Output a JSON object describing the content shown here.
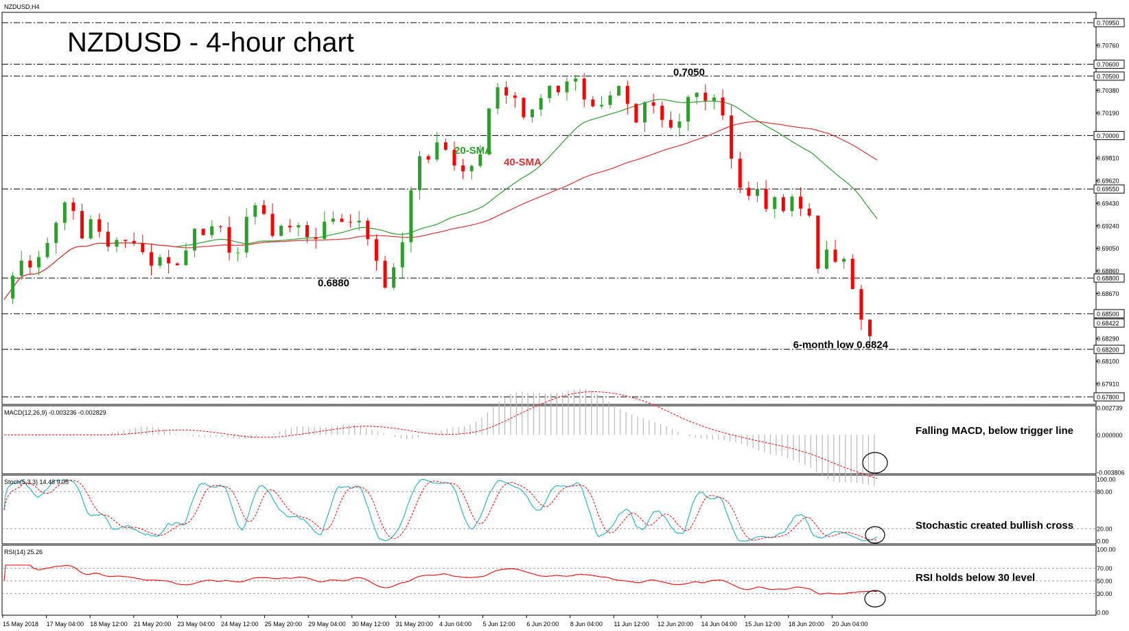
{
  "symbol_label": "NZDUSD,H4",
  "title": "NZDUSD - 4-hour chart",
  "colors": {
    "bull": "#2aa02a",
    "bear": "#ff0000",
    "sma20": "#2aa02a",
    "sma40": "#e03030",
    "stoch_main": "#2bb5c8",
    "stoch_signal": "#ff0000",
    "rsi": "#ff0000",
    "macd_hist": "#b8b8b8",
    "macd_signal": "#ff0000"
  },
  "chart_data": {
    "type": "candlestick",
    "timeframe": "4-hour",
    "ylim": [
      0.678,
      0.7095
    ],
    "price_ticks": [
      "0.70950",
      "0.70760",
      "0.70600",
      "0.70500",
      "0.70380",
      "0.70190",
      "0.70000",
      "0.69810",
      "0.69620",
      "0.69550",
      "0.69430",
      "0.69240",
      "0.69050",
      "0.68860",
      "0.68800",
      "0.68670",
      "0.68500",
      "0.68422",
      "0.68290",
      "0.68200",
      "0.68100",
      "0.67910",
      "0.67800"
    ],
    "highlighted_ticks": [
      "0.70950",
      "0.70600",
      "0.70500",
      "0.70000",
      "0.69550",
      "0.68800",
      "0.68500",
      "0.68422",
      "0.68200",
      "0.67800"
    ],
    "horizontal_levels": [
      0.7095,
      0.706,
      0.705,
      0.7,
      0.6955,
      0.688,
      0.685,
      0.682,
      0.678
    ],
    "x_labels": [
      "15 May 2018",
      "17 May 04:00",
      "18 May 12:00",
      "21 May 20:00",
      "23 May 04:00",
      "24 May 12:00",
      "25 May 20:00",
      "29 May 04:00",
      "30 May 12:00",
      "31 May 20:00",
      "4 Jun 04:00",
      "5 Jun 12:00",
      "6 Jun 20:00",
      "8 Jun 04:00",
      "11 Jun 12:00",
      "12 Jun 20:00",
      "14 Jun 04:00",
      "15 Jun 12:00",
      "18 Jun 20:00",
      "20 Jun 04:00"
    ],
    "price_path": [
      [
        0,
        0.6862
      ],
      [
        10,
        0.6895
      ],
      [
        20,
        0.6883
      ],
      [
        25,
        0.6898
      ],
      [
        35,
        0.693
      ],
      [
        45,
        0.6945
      ],
      [
        55,
        0.6905
      ],
      [
        62,
        0.6935
      ],
      [
        68,
        0.6905
      ],
      [
        75,
        0.6915
      ],
      [
        85,
        0.6908
      ],
      [
        95,
        0.6905
      ],
      [
        105,
        0.689
      ],
      [
        112,
        0.69
      ],
      [
        117,
        0.6885
      ],
      [
        125,
        0.6895
      ],
      [
        133,
        0.6925
      ],
      [
        140,
        0.6915
      ],
      [
        148,
        0.6928
      ],
      [
        155,
        0.6905
      ],
      [
        160,
        0.69
      ],
      [
        165,
        0.6915
      ],
      [
        172,
        0.6945
      ],
      [
        180,
        0.6935
      ],
      [
        188,
        0.6915
      ],
      [
        197,
        0.6928
      ],
      [
        208,
        0.692
      ],
      [
        217,
        0.691
      ],
      [
        222,
        0.6925
      ],
      [
        232,
        0.6928
      ],
      [
        243,
        0.6932
      ],
      [
        248,
        0.692
      ],
      [
        258,
        0.689
      ],
      [
        264,
        0.6875
      ],
      [
        268,
        0.6885
      ],
      [
        271,
        0.6895
      ],
      [
        276,
        0.6907
      ],
      [
        279,
        0.6925
      ],
      [
        282,
        0.6955
      ],
      [
        285,
        0.6975
      ],
      [
        290,
        0.6985
      ],
      [
        296,
        0.6975
      ],
      [
        300,
        0.699
      ],
      [
        305,
        0.6995
      ],
      [
        310,
        0.6975
      ],
      [
        318,
        0.6965
      ],
      [
        323,
        0.6975
      ],
      [
        330,
        0.6985
      ],
      [
        335,
        0.7015
      ],
      [
        340,
        0.704
      ],
      [
        347,
        0.703
      ],
      [
        355,
        0.703
      ],
      [
        362,
        0.7015
      ],
      [
        370,
        0.7032
      ],
      [
        378,
        0.7045
      ],
      [
        384,
        0.7035
      ],
      [
        390,
        0.705
      ],
      [
        397,
        0.7048
      ],
      [
        402,
        0.7032
      ],
      [
        408,
        0.7025
      ],
      [
        412,
        0.7022
      ],
      [
        420,
        0.703
      ],
      [
        426,
        0.704
      ],
      [
        432,
        0.7022
      ],
      [
        438,
        0.701
      ],
      [
        443,
        0.7025
      ],
      [
        450,
        0.7025
      ],
      [
        458,
        0.7012
      ],
      [
        463,
        0.7005
      ],
      [
        470,
        0.7015
      ],
      [
        476,
        0.7045
      ],
      [
        482,
        0.7025
      ],
      [
        488,
        0.7035
      ],
      [
        494,
        0.703
      ],
      [
        498,
        0.702
      ],
      [
        503,
        0.6985
      ],
      [
        509,
        0.6955
      ],
      [
        515,
        0.6945
      ],
      [
        521,
        0.6955
      ],
      [
        526,
        0.6935
      ],
      [
        533,
        0.6945
      ],
      [
        540,
        0.6935
      ],
      [
        546,
        0.695
      ],
      [
        552,
        0.6935
      ],
      [
        558,
        0.6935
      ],
      [
        563,
        0.689
      ],
      [
        570,
        0.69
      ],
      [
        577,
        0.6892
      ],
      [
        582,
        0.6895
      ],
      [
        585,
        0.688
      ],
      [
        590,
        0.6865
      ],
      [
        595,
        0.6845
      ],
      [
        600,
        0.6836
      ],
      [
        605,
        0.6842
      ]
    ],
    "annotations": [
      {
        "text": "0.7050",
        "anchor": "peak"
      },
      {
        "text": "0.6880",
        "anchor": "trough"
      },
      {
        "text": "6-month low 0.6824",
        "anchor": "low"
      },
      {
        "text": "20-SMA",
        "anchor": "sma20"
      },
      {
        "text": "40-SMA",
        "anchor": "sma40"
      }
    ],
    "indicators": {
      "macd": {
        "label": "MACD(12,26,9) -0.003236 -0.002829",
        "ticks": [
          "0.002739",
          "0.000000",
          "-0.003806"
        ],
        "ylim": [
          -0.003806,
          0.002739
        ],
        "note": "Falling MACD, below trigger line"
      },
      "stochastic": {
        "label": "Stoch(5,3,3) 14.48 9.05",
        "ticks": [
          "100.00",
          "80.00",
          "20.00",
          "0.00"
        ],
        "ylim": [
          0,
          100
        ],
        "levels": [
          80,
          20
        ],
        "note": "Stochastic created bullish cross"
      },
      "rsi": {
        "label": "RSI(14) 25.26",
        "ticks": [
          "100.00",
          "70.00",
          "50.00",
          "30.00",
          "0.00"
        ],
        "ylim": [
          0,
          100
        ],
        "levels": [
          70,
          50,
          30
        ],
        "note": "RSI holds below 30 level"
      }
    }
  }
}
